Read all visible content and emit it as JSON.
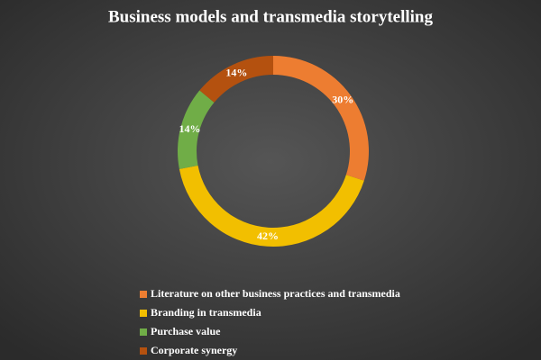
{
  "chart_data": {
    "type": "donut",
    "title": "Business models and transmedia storytelling",
    "categories": [
      "Literature on other business practices and transmedia",
      "Branding in transmedia",
      "Purchase value",
      "Corporate synergy"
    ],
    "values": [
      30,
      42,
      14,
      14
    ],
    "value_labels": [
      "30%",
      "42%",
      "14%",
      "14%"
    ],
    "colors": [
      "#ed7d31",
      "#f2bf00",
      "#70ad47",
      "#b4510f"
    ],
    "legend": "bottom"
  }
}
